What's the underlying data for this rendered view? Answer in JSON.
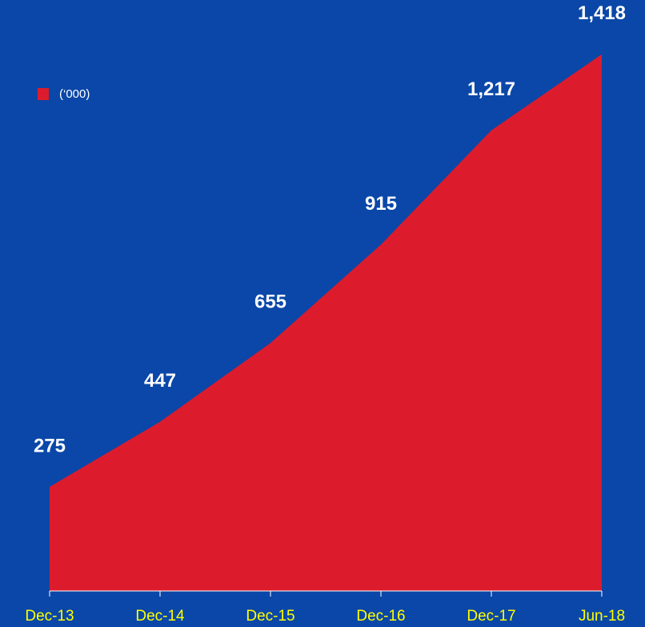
{
  "chart_data": {
    "type": "area",
    "categories": [
      "Dec-13",
      "Dec-14",
      "Dec-15",
      "Dec-16",
      "Dec-17",
      "Jun-18"
    ],
    "series": [
      {
        "name": "(‘000)",
        "color": "#dc1c2c",
        "values": [
          275,
          447,
          655,
          915,
          1217,
          1418
        ],
        "value_labels": [
          "275",
          "447",
          "655",
          "915",
          "1,217",
          "1,418"
        ]
      }
    ],
    "ylim": [
      0,
      1500
    ],
    "legend": "top-left"
  }
}
